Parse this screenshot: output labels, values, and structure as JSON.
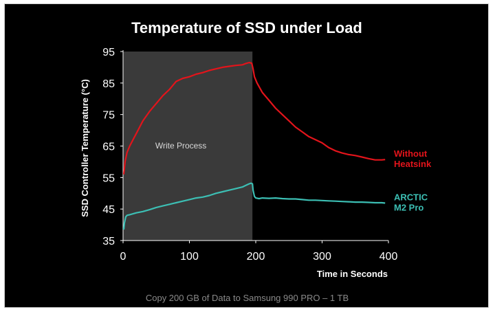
{
  "chart_data": {
    "type": "line",
    "title": "Temperature of SSD under Load",
    "xlabel": "Time in Seconds",
    "ylabel": "SSD Controller Temperature (°C)",
    "xlim": [
      0,
      400
    ],
    "ylim": [
      35,
      95
    ],
    "xticks": [
      "0",
      "100",
      "200",
      "300",
      "400"
    ],
    "yticks": [
      "35",
      "45",
      "55",
      "65",
      "75",
      "85",
      "95"
    ],
    "grid": false,
    "region": {
      "label": "Write Process",
      "x_start": 0,
      "x_end": 195,
      "color": "#3a3a3a"
    },
    "series": [
      {
        "name": "Without Heatsink",
        "label_lines": [
          "Without",
          "Heatsink"
        ],
        "color": "#e3141b",
        "x": [
          1,
          3,
          6,
          10,
          15,
          20,
          25,
          30,
          40,
          50,
          60,
          70,
          80,
          90,
          100,
          110,
          120,
          130,
          140,
          150,
          160,
          170,
          180,
          185,
          190,
          194,
          196,
          198,
          202,
          210,
          220,
          230,
          240,
          250,
          260,
          270,
          280,
          290,
          300,
          310,
          320,
          330,
          340,
          350,
          360,
          370,
          380,
          390,
          395
        ],
        "y": [
          56,
          60,
          63,
          65,
          67,
          69,
          71,
          73,
          76,
          78.5,
          81,
          83,
          85.5,
          86.5,
          87,
          87.8,
          88.3,
          89,
          89.5,
          90,
          90.3,
          90.6,
          90.8,
          91.2,
          91.5,
          91.3,
          89.5,
          87,
          85,
          82,
          79.5,
          77,
          75,
          73,
          71,
          69.5,
          68,
          67,
          66,
          64.5,
          63.5,
          62.8,
          62.3,
          62,
          61.5,
          61,
          60.6,
          60.6,
          60.7
        ]
      },
      {
        "name": "ARCTIC M2 Pro",
        "label_lines": [
          "ARCTIC",
          "M2 Pro"
        ],
        "color": "#3cbfb4",
        "x": [
          1,
          2,
          4,
          6,
          10,
          20,
          30,
          40,
          50,
          60,
          70,
          80,
          90,
          100,
          110,
          120,
          130,
          140,
          150,
          160,
          170,
          180,
          185,
          190,
          193,
          195,
          196,
          198,
          200,
          205,
          210,
          220,
          230,
          240,
          250,
          260,
          270,
          280,
          290,
          300,
          310,
          320,
          330,
          340,
          350,
          360,
          370,
          380,
          390,
          395
        ],
        "y": [
          38.5,
          40.5,
          42.5,
          43,
          43.2,
          43.8,
          44.2,
          44.8,
          45.5,
          46,
          46.5,
          47,
          47.5,
          48,
          48.5,
          48.8,
          49.3,
          50,
          50.5,
          51,
          51.5,
          52,
          52.5,
          53,
          53.2,
          53,
          51,
          49,
          48.5,
          48.3,
          48.5,
          48.4,
          48.5,
          48.3,
          48.2,
          48.2,
          48,
          47.8,
          47.8,
          47.7,
          47.6,
          47.5,
          47.4,
          47.3,
          47.2,
          47.2,
          47.1,
          47.0,
          47.0,
          46.9
        ]
      }
    ]
  },
  "caption": "Copy 200 GB of Data to Samsung 990 PRO  – 1 TB"
}
